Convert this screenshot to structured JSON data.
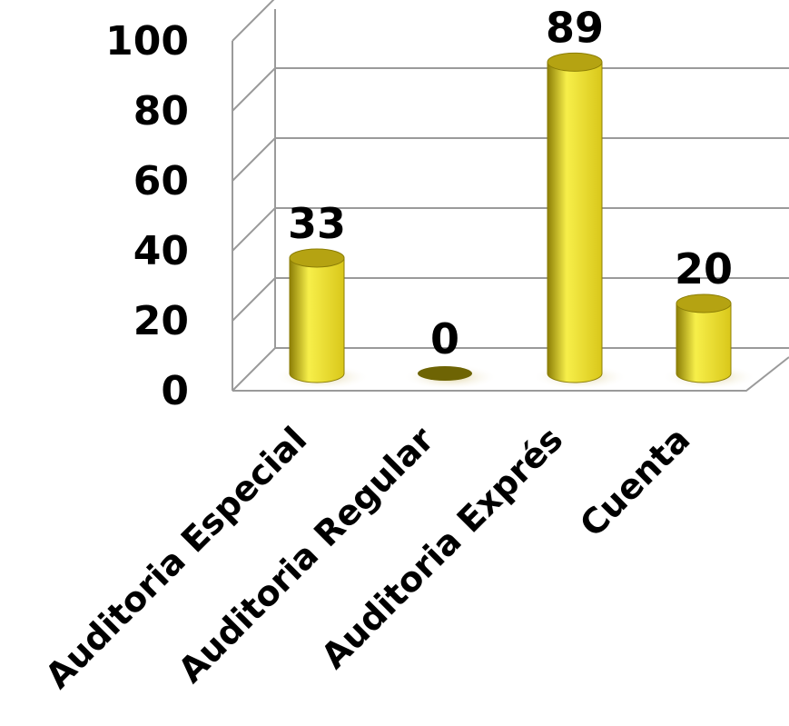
{
  "chart_data": {
    "type": "bar",
    "style": "3d-cylinder",
    "categories": [
      "Auditoria Especial",
      "Auditoria Regular",
      "Auditoria Exprés",
      "Cuenta"
    ],
    "values": [
      33,
      0,
      89,
      20
    ],
    "data_labels": [
      "33",
      "0",
      "89",
      "20"
    ],
    "yticks": [
      "0",
      "20",
      "40",
      "60",
      "80",
      "100"
    ],
    "ylim": [
      0,
      100
    ],
    "grid": true,
    "legend": "none",
    "colors": {
      "bar_light": "#f7ef4a",
      "bar_mid": "#d9c71a",
      "bar_dark": "#8c7e06",
      "bar_top": "#b5a312",
      "zero_disk": "#6e6404",
      "grid": "#9a9a9a"
    }
  }
}
